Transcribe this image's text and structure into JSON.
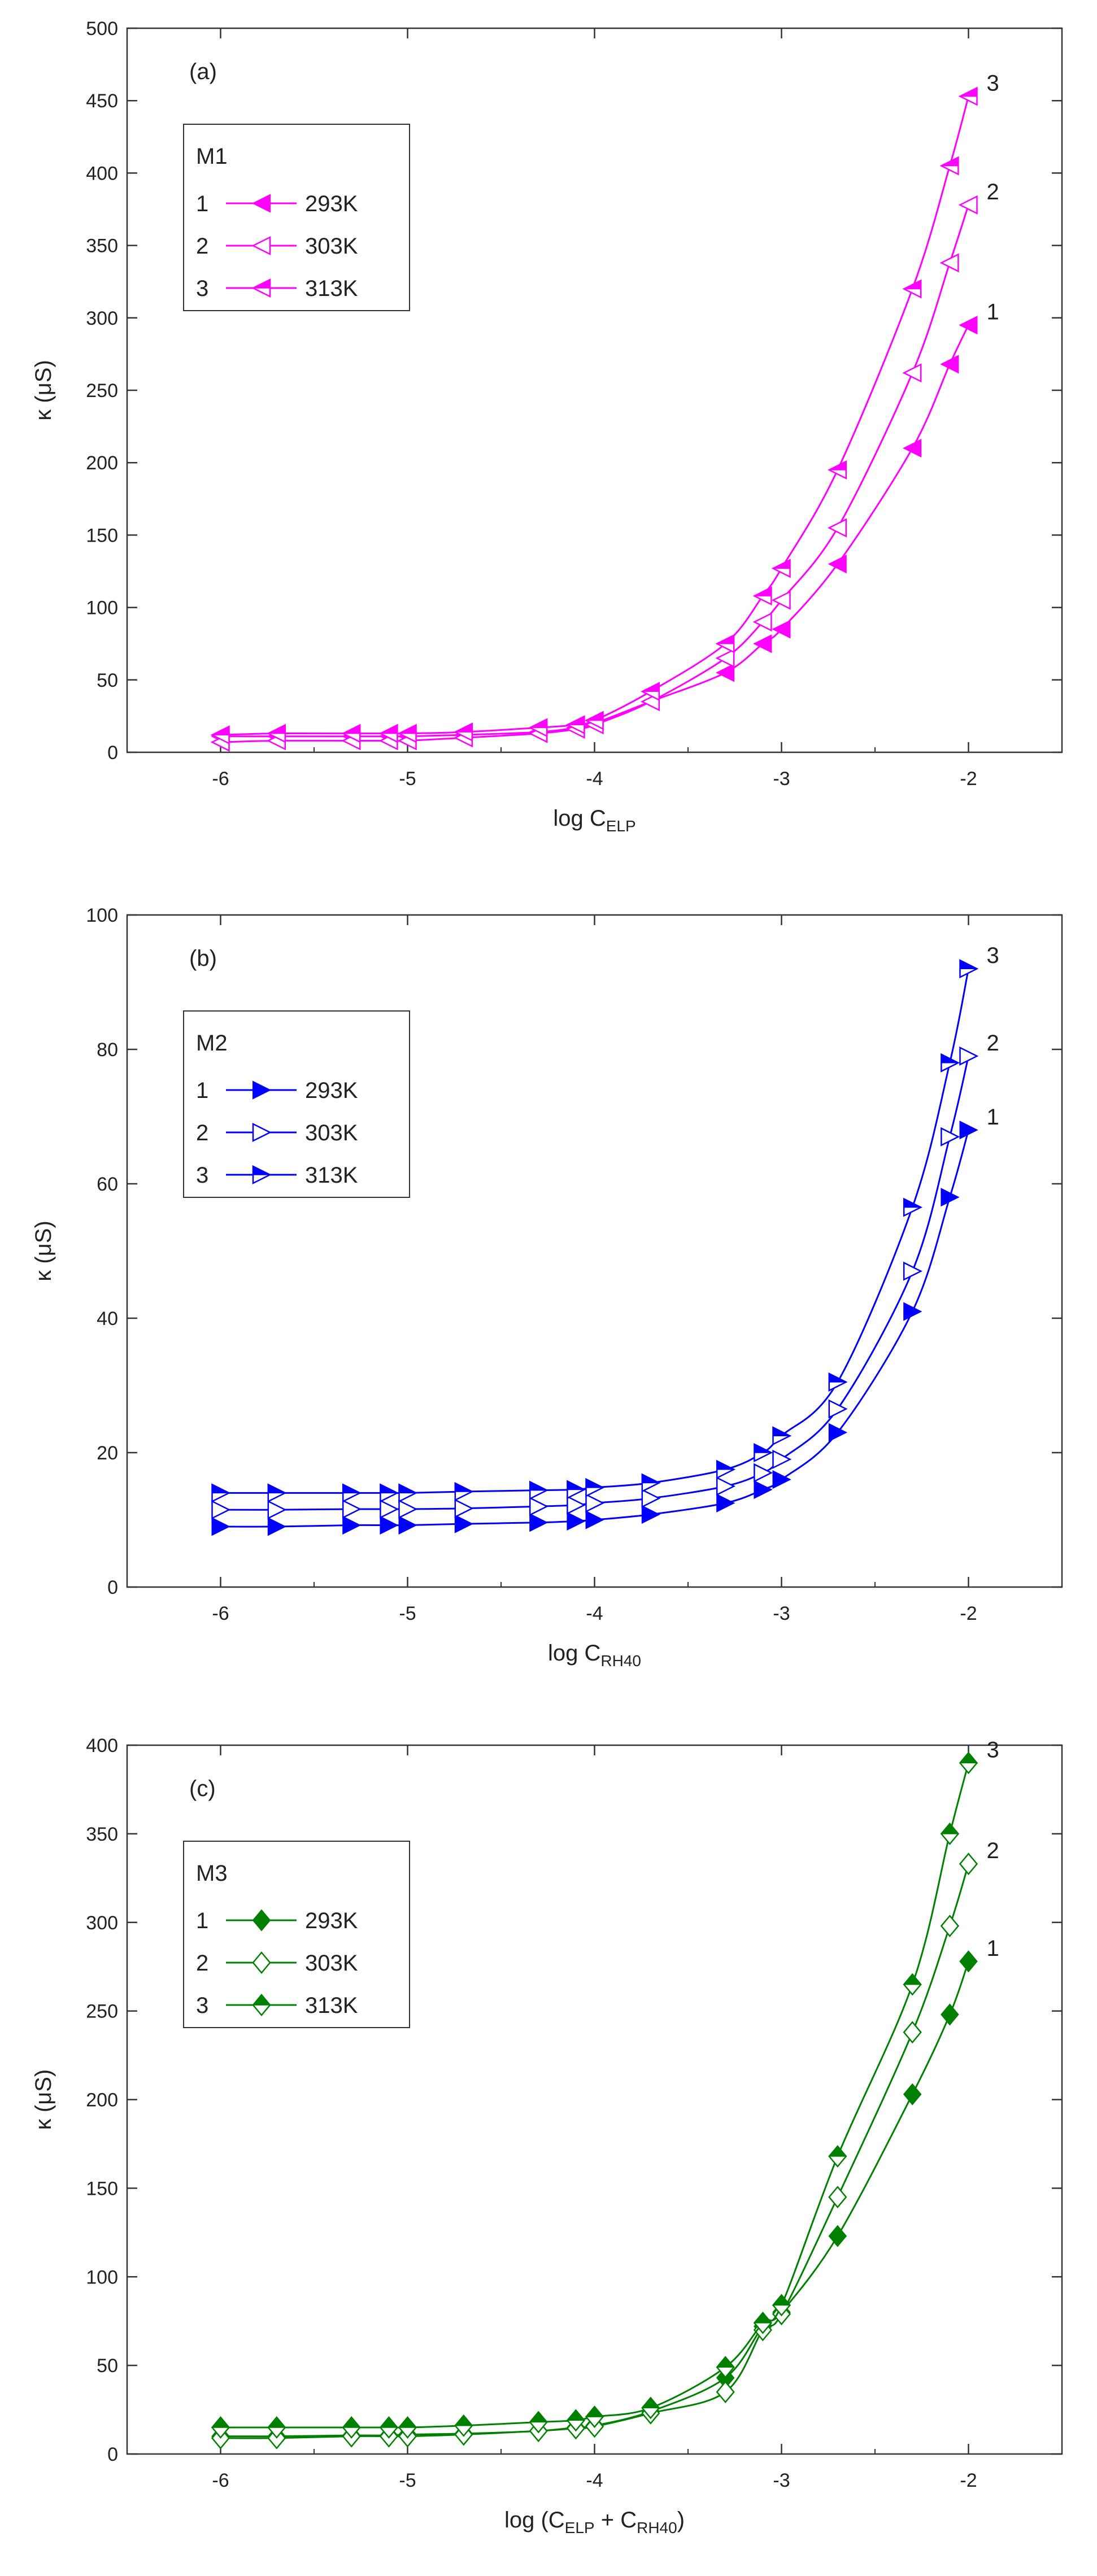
{
  "chart_data": [
    {
      "type": "line",
      "panel_label": "(a)",
      "ylabel": "κ (μS)",
      "xlabel": {
        "base": "log C",
        "subscript": "ELP"
      },
      "xlim": [
        -6.5,
        -1.5
      ],
      "ylim": [
        0,
        500
      ],
      "xticks": [
        -6,
        -5,
        -4,
        -3,
        -2
      ],
      "yticks": [
        0,
        50,
        100,
        150,
        200,
        250,
        300,
        350,
        400,
        450,
        500
      ],
      "grid": false,
      "legend": {
        "title": "M1",
        "position": "top-left"
      },
      "color": "#ff00ff",
      "marker": "triangle-left",
      "series": [
        {
          "name": "293K",
          "legend_number": "1",
          "curve_label": "1",
          "fill": "solid",
          "x": [
            -6,
            -5.7,
            -5.3,
            -5.1,
            -5,
            -4.7,
            -4.3,
            -4.1,
            -4,
            -3.7,
            -3.3,
            -3.1,
            -3,
            -2.7,
            -2.3,
            -2.1,
            -2
          ],
          "y": [
            11,
            11,
            11,
            11,
            11,
            12,
            14,
            17,
            20,
            35,
            55,
            75,
            85,
            130,
            210,
            268,
            295
          ]
        },
        {
          "name": "303K",
          "legend_number": "2",
          "curve_label": "2",
          "fill": "open",
          "x": [
            -6,
            -5.7,
            -5.3,
            -5.1,
            -5,
            -4.7,
            -4.3,
            -4.1,
            -4,
            -3.7,
            -3.3,
            -3.1,
            -3,
            -2.7,
            -2.3,
            -2.1,
            -2
          ],
          "y": [
            7,
            8,
            8,
            8,
            8,
            10,
            13,
            16,
            19,
            35,
            65,
            90,
            105,
            155,
            262,
            338,
            378
          ]
        },
        {
          "name": "313K",
          "legend_number": "3",
          "curve_label": "3",
          "fill": "half",
          "x": [
            -6,
            -5.7,
            -5.3,
            -5.1,
            -5,
            -4.7,
            -4.3,
            -4.1,
            -4,
            -3.7,
            -3.3,
            -3.1,
            -3,
            -2.7,
            -2.3,
            -2.1,
            -2
          ],
          "y": [
            12,
            13,
            13,
            13,
            13,
            14,
            17,
            19,
            22,
            42,
            75,
            108,
            127,
            195,
            320,
            405,
            453
          ]
        }
      ]
    },
    {
      "type": "line",
      "panel_label": "(b)",
      "ylabel": "κ (μS)",
      "xlabel": {
        "base": "log C",
        "subscript": "RH40"
      },
      "xlim": [
        -6.5,
        -1.5
      ],
      "ylim": [
        0,
        100
      ],
      "xticks": [
        -6,
        -5,
        -4,
        -3,
        -2
      ],
      "yticks": [
        0,
        20,
        40,
        60,
        80,
        100
      ],
      "grid": false,
      "legend": {
        "title": "M2",
        "position": "top-left"
      },
      "color": "#0000ff",
      "marker": "triangle-right",
      "series": [
        {
          "name": "293K",
          "legend_number": "1",
          "curve_label": "1",
          "fill": "solid",
          "x": [
            -6,
            -5.7,
            -5.3,
            -5.1,
            -5,
            -4.7,
            -4.3,
            -4.1,
            -4,
            -3.7,
            -3.3,
            -3.1,
            -3,
            -2.7,
            -2.3,
            -2.1,
            -2
          ],
          "y": [
            9,
            9,
            9.2,
            9.2,
            9.2,
            9.4,
            9.6,
            9.8,
            10,
            10.8,
            12.5,
            14.5,
            16,
            23,
            41,
            58,
            68
          ]
        },
        {
          "name": "303K",
          "legend_number": "2",
          "curve_label": "2",
          "fill": "open",
          "x": [
            -6,
            -5.7,
            -5.3,
            -5.1,
            -5,
            -4.7,
            -4.3,
            -4.1,
            -4,
            -3.7,
            -3.3,
            -3.1,
            -3,
            -2.7,
            -2.3,
            -2.1,
            -2
          ],
          "y": [
            11.5,
            11.5,
            11.6,
            11.6,
            11.6,
            11.7,
            12,
            12.2,
            12.5,
            13.2,
            15,
            17,
            19,
            26.5,
            47,
            67,
            79
          ]
        },
        {
          "name": "313K",
          "legend_number": "3",
          "curve_label": "3",
          "fill": "half",
          "x": [
            -6,
            -5.7,
            -5.3,
            -5.1,
            -5,
            -4.7,
            -4.3,
            -4.1,
            -4,
            -3.7,
            -3.3,
            -3.1,
            -3,
            -2.7,
            -2.3,
            -2.1,
            -2
          ],
          "y": [
            14,
            14,
            14,
            14,
            14,
            14.2,
            14.4,
            14.5,
            14.8,
            15.5,
            17.5,
            20,
            22.5,
            30.5,
            56.5,
            78,
            92
          ]
        }
      ]
    },
    {
      "type": "line",
      "panel_label": "(c)",
      "ylabel": "κ (μS)",
      "xlabel": {
        "base": "log (C",
        "subscript": "ELP",
        "middle": " + C",
        "subscript2": "RH40",
        "end": ")"
      },
      "xlim": [
        -6.5,
        -1.5
      ],
      "ylim": [
        0,
        400
      ],
      "xticks": [
        -6,
        -5,
        -4,
        -3,
        -2
      ],
      "yticks": [
        0,
        50,
        100,
        150,
        200,
        250,
        300,
        350,
        400
      ],
      "grid": false,
      "legend": {
        "title": "M3",
        "position": "top-left"
      },
      "color": "#008000",
      "marker": "diamond",
      "series": [
        {
          "name": "293K",
          "legend_number": "1",
          "curve_label": "1",
          "fill": "solid",
          "x": [
            -6,
            -5.7,
            -5.3,
            -5.1,
            -5,
            -4.7,
            -4.3,
            -4.1,
            -4,
            -3.7,
            -3.3,
            -3.1,
            -3,
            -2.7,
            -2.3,
            -2.1,
            -2
          ],
          "y": [
            10,
            10,
            10.5,
            10.5,
            11,
            11.5,
            13,
            15,
            16,
            24,
            43,
            72,
            80,
            123,
            203,
            248,
            278
          ]
        },
        {
          "name": "303K",
          "legend_number": "2",
          "curve_label": "2",
          "fill": "open",
          "x": [
            -6,
            -5.7,
            -5.3,
            -5.1,
            -5,
            -4.7,
            -4.3,
            -4.1,
            -4,
            -3.7,
            -3.3,
            -3.1,
            -3,
            -2.7,
            -2.3,
            -2.1,
            -2
          ],
          "y": [
            9,
            9,
            10,
            10,
            10,
            11,
            13,
            14.5,
            15.5,
            23,
            35,
            70,
            79,
            145,
            238,
            298,
            333
          ]
        },
        {
          "name": "313K",
          "legend_number": "3",
          "curve_label": "3",
          "fill": "half",
          "x": [
            -6,
            -5.7,
            -5.3,
            -5.1,
            -5,
            -4.7,
            -4.3,
            -4.1,
            -4,
            -3.7,
            -3.3,
            -3.1,
            -3,
            -2.7,
            -2.3,
            -2.1,
            -2
          ],
          "y": [
            15,
            15,
            15,
            15,
            15,
            16,
            18,
            19,
            21,
            26,
            49,
            74,
            84,
            168,
            265,
            350,
            390
          ]
        }
      ]
    }
  ]
}
